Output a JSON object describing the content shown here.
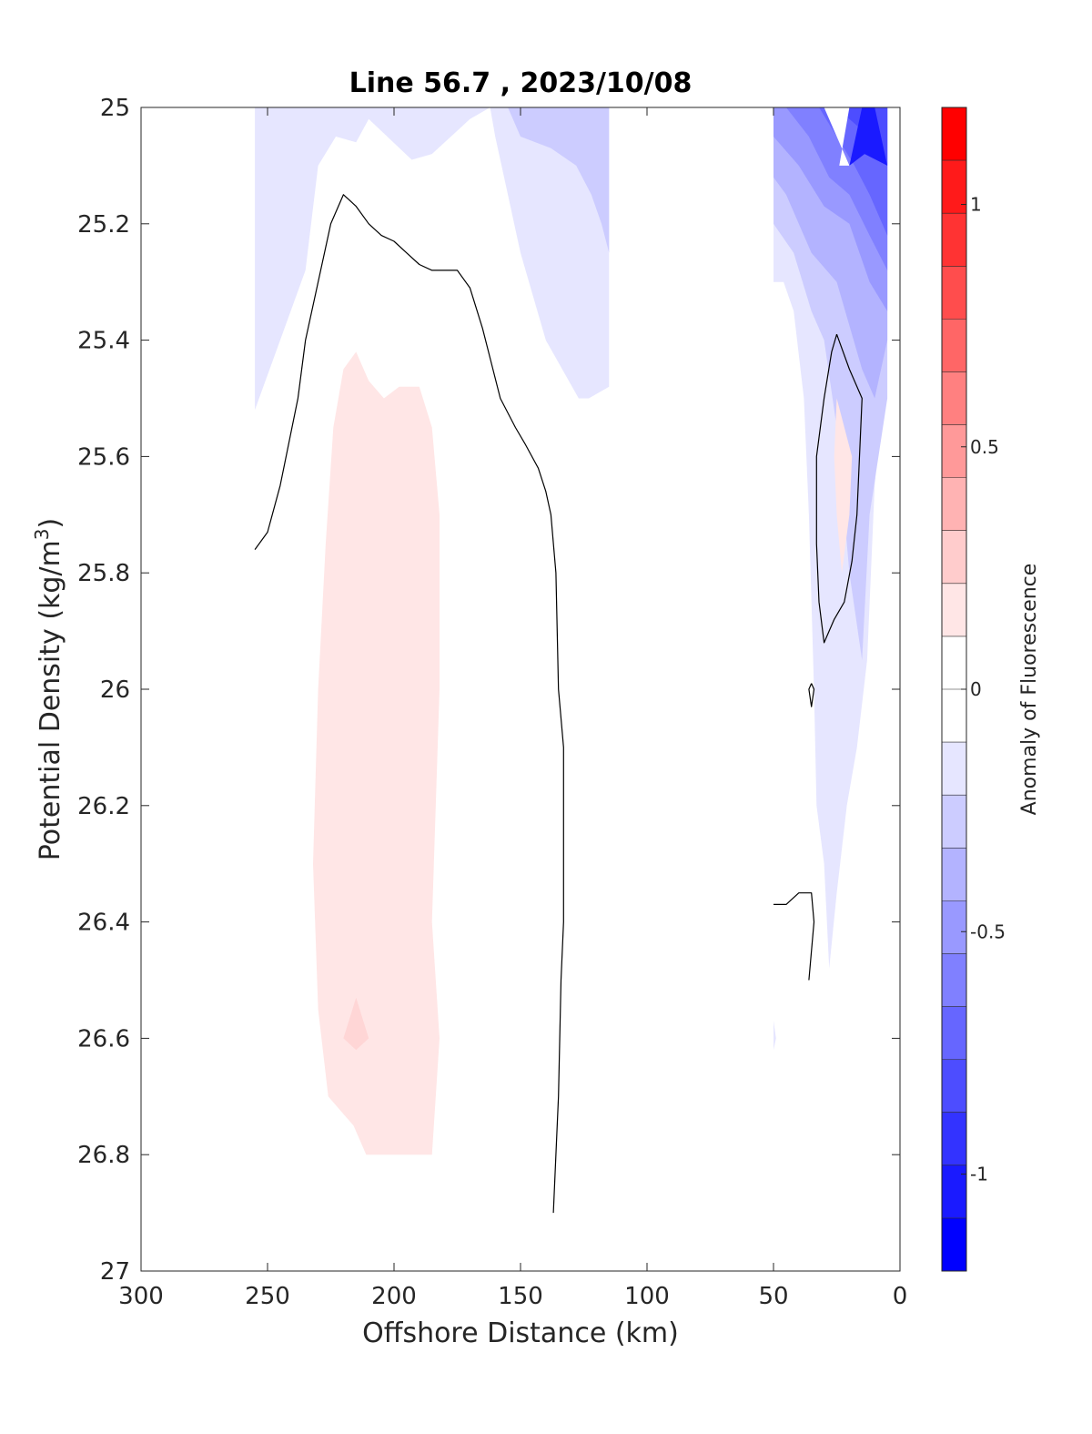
{
  "chart_data": {
    "type": "contour",
    "title": "Line 56.7 , 2023/10/08",
    "xlabel": "Offshore Distance (km)",
    "ylabel_main": "Potential Density (kg/m",
    "ylabel_sup": "3",
    "ylabel_close": ")",
    "xlim": [
      300,
      0
    ],
    "ylim": [
      27,
      25
    ],
    "x_reversed": true,
    "y_reversed": true,
    "xticks": [
      300,
      250,
      200,
      150,
      100,
      50,
      0
    ],
    "xtick_labels": [
      "300",
      "250",
      "200",
      "150",
      "100",
      "50",
      "0"
    ],
    "yticks": [
      25,
      25.2,
      25.4,
      25.6,
      25.8,
      26,
      26.2,
      26.4,
      26.6,
      26.8,
      27
    ],
    "ytick_labels": [
      "25",
      "25.2",
      "25.4",
      "25.6",
      "25.8",
      "26",
      "26.2",
      "26.4",
      "26.6",
      "26.8",
      "27"
    ],
    "colorbar": {
      "label": "Anomaly of Fluorescence",
      "range": [
        -1.2,
        1.2
      ],
      "ticks": [
        -1,
        -0.5,
        0,
        0.5,
        1
      ],
      "tick_labels": [
        "-1",
        "-0.5",
        "0",
        "0.5",
        "1"
      ],
      "colors": [
        "#0000ff",
        "#1a1aff",
        "#3333ff",
        "#4d4dff",
        "#6666ff",
        "#8080ff",
        "#9999ff",
        "#b3b3ff",
        "#ccccff",
        "#e6e6ff",
        "#ffffff",
        "#ffffff",
        "#ffe6e6",
        "#ffcccc",
        "#ffb3b3",
        "#ff9999",
        "#ff8080",
        "#ff6666",
        "#ff4d4d",
        "#ff3333",
        "#ff1a1a",
        "#ff0000"
      ]
    },
    "filled_regions": [
      {
        "level": -0.2,
        "color": "#e6e6ff",
        "points": [
          [
            255,
            25
          ],
          [
            115,
            25
          ],
          [
            115,
            25.48
          ],
          [
            123,
            25.5
          ],
          [
            127,
            25.5
          ],
          [
            140,
            25.4
          ],
          [
            150,
            25.25
          ],
          [
            155,
            25.15
          ],
          [
            160,
            25.05
          ],
          [
            162,
            25
          ],
          [
            170,
            25.02
          ],
          [
            185,
            25.08
          ],
          [
            193,
            25.09
          ],
          [
            210,
            25.02
          ],
          [
            215,
            25.06
          ],
          [
            223,
            25.05
          ],
          [
            230,
            25.1
          ],
          [
            235,
            25.28
          ],
          [
            245,
            25.4
          ],
          [
            255,
            25.52
          ]
        ]
      },
      {
        "level": -0.3,
        "color": "#ccccff",
        "points": [
          [
            155,
            25
          ],
          [
            115,
            25
          ],
          [
            115,
            25.25
          ],
          [
            118,
            25.2
          ],
          [
            122,
            25.15
          ],
          [
            128,
            25.1
          ],
          [
            138,
            25.07
          ],
          [
            150,
            25.05
          ]
        ]
      },
      {
        "level": -0.2,
        "color": "#e6e6ff",
        "points": [
          [
            50,
            25
          ],
          [
            5,
            25
          ],
          [
            5,
            25.4
          ],
          [
            10,
            25.65
          ],
          [
            13,
            25.95
          ],
          [
            17,
            26.1
          ],
          [
            21,
            26.2
          ],
          [
            25,
            26.35
          ],
          [
            28,
            26.48
          ],
          [
            30,
            26.3
          ],
          [
            33,
            26.2
          ],
          [
            34,
            26.0
          ],
          [
            36,
            25.7
          ],
          [
            38,
            25.5
          ],
          [
            42,
            25.35
          ],
          [
            46,
            25.3
          ],
          [
            50,
            25.3
          ]
        ]
      },
      {
        "level": -0.3,
        "color": "#ccccff",
        "points": [
          [
            50,
            25
          ],
          [
            5,
            25
          ],
          [
            5,
            25.5
          ],
          [
            12,
            25.7
          ],
          [
            15,
            25.95
          ],
          [
            20,
            25.8
          ],
          [
            25,
            25.55
          ],
          [
            30,
            25.4
          ],
          [
            35,
            25.35
          ],
          [
            42,
            25.25
          ],
          [
            50,
            25.2
          ]
        ]
      },
      {
        "level": -0.4,
        "color": "#b3b3ff",
        "points": [
          [
            50,
            25
          ],
          [
            5,
            25
          ],
          [
            5,
            25.4
          ],
          [
            10,
            25.5
          ],
          [
            15,
            25.45
          ],
          [
            25,
            25.3
          ],
          [
            35,
            25.25
          ],
          [
            45,
            25.15
          ],
          [
            50,
            25.12
          ]
        ]
      },
      {
        "level": -0.5,
        "color": "#9999ff",
        "points": [
          [
            50,
            25
          ],
          [
            5,
            25
          ],
          [
            5,
            25.35
          ],
          [
            12,
            25.3
          ],
          [
            20,
            25.2
          ],
          [
            30,
            25.17
          ],
          [
            40,
            25.1
          ],
          [
            50,
            25.05
          ]
        ]
      },
      {
        "level": -0.6,
        "color": "#8080ff",
        "points": [
          [
            45,
            25
          ],
          [
            5,
            25
          ],
          [
            5,
            25.28
          ],
          [
            12,
            25.22
          ],
          [
            20,
            25.15
          ],
          [
            28,
            25.12
          ],
          [
            36,
            25.05
          ]
        ]
      },
      {
        "level": -0.7,
        "color": "#6666ff",
        "points": [
          [
            32,
            25
          ],
          [
            5,
            25
          ],
          [
            5,
            25.22
          ],
          [
            12,
            25.15
          ],
          [
            18,
            25.1
          ],
          [
            25,
            25.05
          ]
        ]
      },
      {
        "level": -0.8,
        "color": "#4d4dff",
        "points": [
          [
            27,
            25
          ],
          [
            5,
            25
          ],
          [
            5,
            25.1
          ],
          [
            12,
            25.05
          ],
          [
            20,
            25.02
          ]
        ]
      },
      {
        "level": 0.0,
        "color": "#ffffff",
        "points": [
          [
            30,
            25
          ],
          [
            20,
            25
          ],
          [
            24,
            25.1
          ],
          [
            20,
            25.1
          ]
        ]
      },
      {
        "level": -0.9,
        "color": "#1a1aff",
        "points": [
          [
            15,
            25
          ],
          [
            10,
            25
          ],
          [
            5,
            25.1
          ],
          [
            14,
            25.08
          ],
          [
            20,
            25.1
          ]
        ]
      },
      {
        "level": 0.2,
        "color": "#ffe6e6",
        "points": [
          [
            215,
            25.42
          ],
          [
            210,
            25.47
          ],
          [
            204,
            25.5
          ],
          [
            198,
            25.48
          ],
          [
            190,
            25.48
          ],
          [
            185,
            25.55
          ],
          [
            182,
            25.7
          ],
          [
            182,
            26.0
          ],
          [
            185,
            26.4
          ],
          [
            182,
            26.6
          ],
          [
            185,
            26.8
          ],
          [
            211,
            26.8
          ],
          [
            216,
            26.75
          ],
          [
            226,
            26.7
          ],
          [
            230,
            26.55
          ],
          [
            232,
            26.3
          ],
          [
            230,
            26.0
          ],
          [
            227,
            25.75
          ],
          [
            224,
            25.55
          ],
          [
            220,
            25.45
          ]
        ]
      },
      {
        "level": 0.3,
        "color": "#ffd6d6",
        "points": [
          [
            215,
            26.53
          ],
          [
            210,
            26.6
          ],
          [
            215,
            26.62
          ],
          [
            220,
            26.6
          ]
        ]
      },
      {
        "level": 0.2,
        "color": "#ffe6e6",
        "points": [
          [
            25,
            25.5
          ],
          [
            19,
            25.6
          ],
          [
            20,
            25.7
          ],
          [
            23,
            25.8
          ],
          [
            25,
            25.7
          ],
          [
            26,
            25.6
          ]
        ]
      },
      {
        "level": -0.2,
        "color": "#e6e6ff",
        "points": [
          [
            50,
            26.57
          ],
          [
            49,
            26.6
          ],
          [
            50,
            26.62
          ]
        ]
      }
    ],
    "zero_contours": [
      {
        "points": [
          [
            255,
            25.76
          ],
          [
            250,
            25.73
          ],
          [
            245,
            25.65
          ],
          [
            238,
            25.5
          ],
          [
            235,
            25.4
          ],
          [
            230,
            25.3
          ],
          [
            225,
            25.2
          ],
          [
            220,
            25.15
          ],
          [
            215,
            25.17
          ],
          [
            210,
            25.2
          ],
          [
            205,
            25.22
          ],
          [
            200,
            25.23
          ],
          [
            195,
            25.25
          ],
          [
            190,
            25.27
          ],
          [
            185,
            25.28
          ],
          [
            175,
            25.28
          ],
          [
            170,
            25.31
          ],
          [
            165,
            25.38
          ],
          [
            158,
            25.5
          ],
          [
            152,
            25.55
          ],
          [
            148,
            25.58
          ],
          [
            143,
            25.62
          ],
          [
            140,
            25.66
          ],
          [
            138,
            25.7
          ],
          [
            136,
            25.8
          ],
          [
            135,
            26.0
          ],
          [
            133,
            26.1
          ],
          [
            133,
            26.4
          ],
          [
            134,
            26.5
          ],
          [
            135,
            26.7
          ],
          [
            136,
            26.8
          ],
          [
            137,
            26.9
          ]
        ]
      },
      {
        "points": [
          [
            25,
            25.39
          ],
          [
            20,
            25.45
          ],
          [
            15,
            25.5
          ],
          [
            17,
            25.7
          ],
          [
            19,
            25.78
          ],
          [
            22,
            25.85
          ],
          [
            26,
            25.88
          ],
          [
            30,
            25.92
          ],
          [
            32,
            25.85
          ],
          [
            33,
            25.75
          ],
          [
            33,
            25.6
          ],
          [
            30,
            25.5
          ],
          [
            27,
            25.42
          ],
          [
            25,
            25.39
          ]
        ]
      },
      {
        "points": [
          [
            35,
            25.99
          ],
          [
            34,
            26.0
          ],
          [
            35,
            26.03
          ],
          [
            36,
            26.0
          ],
          [
            35,
            25.99
          ]
        ]
      },
      {
        "points": [
          [
            50,
            26.37
          ],
          [
            45,
            26.37
          ],
          [
            40,
            26.35
          ],
          [
            35,
            26.35
          ],
          [
            34,
            26.4
          ],
          [
            36,
            26.5
          ]
        ]
      }
    ]
  }
}
